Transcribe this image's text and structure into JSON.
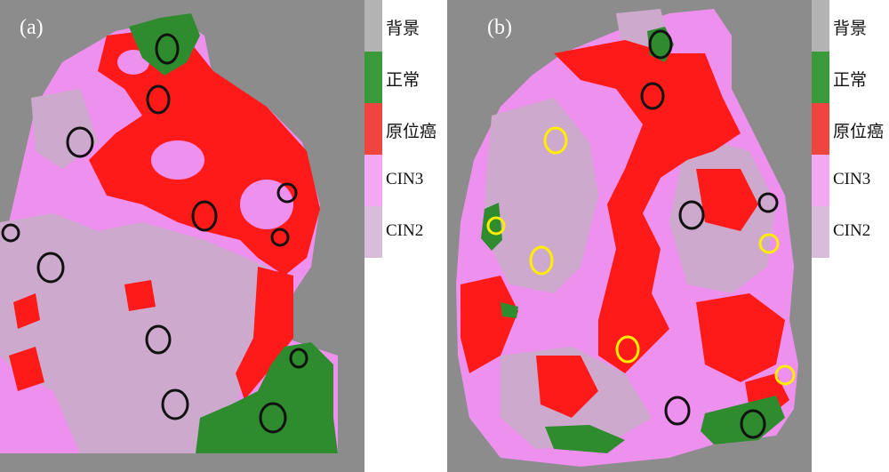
{
  "panels": [
    {
      "label": "(a)"
    },
    {
      "label": "(b)"
    }
  ],
  "legend": {
    "items": [
      {
        "label": "背景",
        "color": "#b3b3b3"
      },
      {
        "label": "正常",
        "color": "#3a9a3a"
      },
      {
        "label": "原位癌",
        "color": "#f0443f"
      },
      {
        "label": "CIN3",
        "color": "#f3a8f3"
      },
      {
        "label": "CIN2",
        "color": "#d9bcd9"
      }
    ]
  },
  "colors": {
    "background": "#8c8c8c",
    "normal": "#2e8b2e",
    "carcinoma": "#ff1a1a",
    "cin3": "#ee90ee",
    "cin2": "#cdaacd",
    "marker_black": "#111111",
    "marker_yellow": "#ffee00"
  }
}
